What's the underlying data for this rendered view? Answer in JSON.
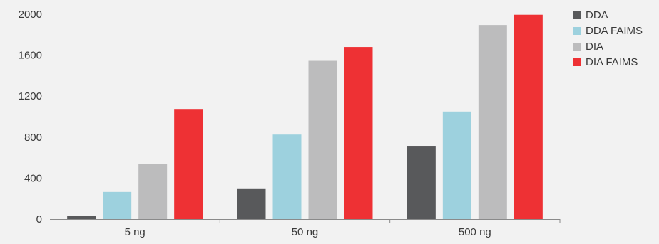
{
  "chart_data": {
    "type": "bar",
    "title": "",
    "xlabel": "",
    "ylabel": "",
    "categories": [
      "5 ng",
      "50 ng",
      "500 ng"
    ],
    "ylim": [
      0,
      2000
    ],
    "yticks": [
      0,
      400,
      800,
      1200,
      1600,
      2000
    ],
    "grid": false,
    "legend_position": "top-right",
    "series": [
      {
        "name": "DDA",
        "color": "#58595b",
        "values": [
          30,
          300,
          715
        ]
      },
      {
        "name": "DDA FAIMS",
        "color": "#9dd1de",
        "values": [
          265,
          825,
          1050
        ]
      },
      {
        "name": "DIA",
        "color": "#bcbcbd",
        "values": [
          540,
          1545,
          1895
        ]
      },
      {
        "name": "DIA FAIMS",
        "color": "#ee3134",
        "values": [
          1075,
          1680,
          1995
        ]
      }
    ]
  }
}
